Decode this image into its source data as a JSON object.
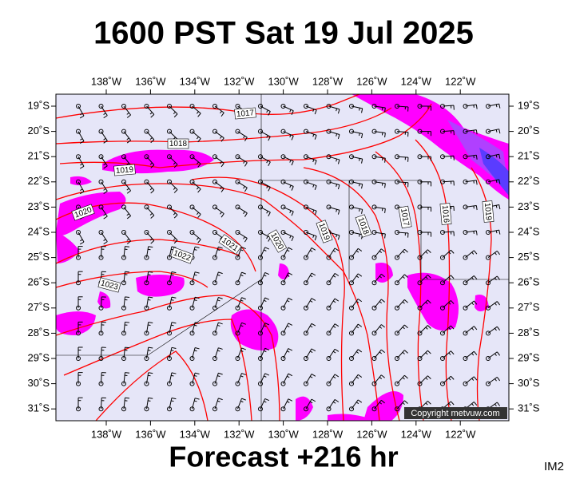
{
  "header": {
    "title": "1600 PST Sat 19 Jul 2025"
  },
  "footer": {
    "forecast": "Forecast +216 hr",
    "image_id": "IM2"
  },
  "map": {
    "copyright": "Copyright metvuw.com",
    "longitudes": [
      "138˚W",
      "136˚W",
      "134˚W",
      "132˚W",
      "130˚W",
      "128˚W",
      "126˚W",
      "124˚W",
      "122˚W"
    ],
    "latitudes": [
      "19˚S",
      "20˚S",
      "21˚S",
      "22˚S",
      "23˚S",
      "24˚S",
      "25˚S",
      "26˚S",
      "27˚S",
      "28˚S",
      "29˚S",
      "30˚S",
      "31˚S"
    ],
    "isobar_labels": [
      "1017",
      "1018",
      "1019",
      "1020",
      "1021",
      "1020",
      "1019",
      "1018",
      "1017",
      "1016",
      "1019",
      "1022",
      "1023"
    ]
  }
}
